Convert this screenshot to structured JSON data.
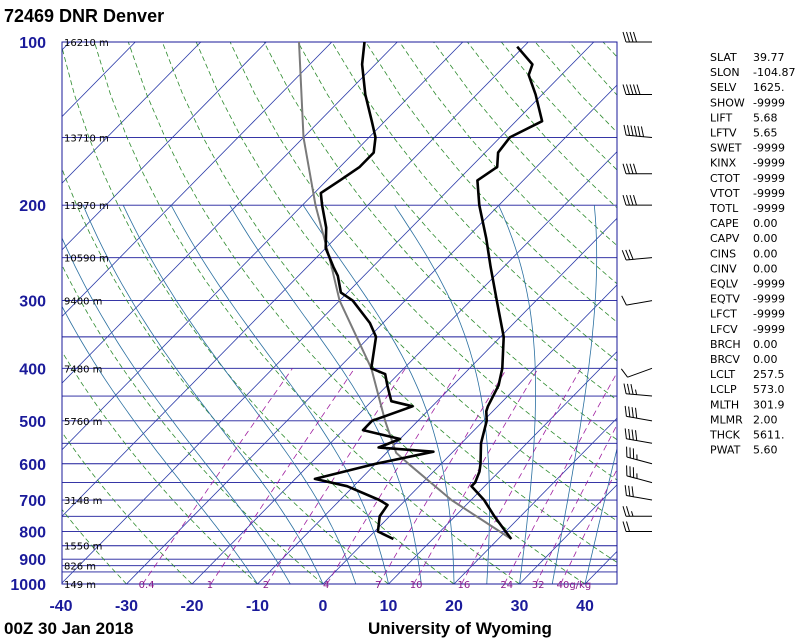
{
  "header": {
    "title": "72469 DNR Denver"
  },
  "footer": {
    "time": "00Z 30 Jan 2018",
    "source": "University of Wyoming"
  },
  "chart_data": {
    "type": "skew-t",
    "title": "72469 DNR Denver",
    "y_scale": "log-pressure",
    "pressure_ticks": [
      100,
      200,
      300,
      400,
      500,
      600,
      700,
      800,
      900,
      1000
    ],
    "temperature_ticks": [
      -40,
      -30,
      -20,
      -10,
      0,
      10,
      20,
      30,
      40
    ],
    "height_labels": [
      {
        "p": 100,
        "text": "16210 m"
      },
      {
        "p": 150,
        "text": "13710 m"
      },
      {
        "p": 200,
        "text": "11970 m"
      },
      {
        "p": 250,
        "text": "10590 m"
      },
      {
        "p": 300,
        "text": "9400 m"
      },
      {
        "p": 400,
        "text": "7480 m"
      },
      {
        "p": 500,
        "text": "5760 m"
      },
      {
        "p": 700,
        "text": "3148 m"
      },
      {
        "p": 850,
        "text": "1550 m"
      },
      {
        "p": 925,
        "text": "826 m"
      },
      {
        "p": 1000,
        "text": "149 m"
      }
    ],
    "mixing_ratio_labels": [
      "0.4",
      "1",
      "2",
      "4",
      "7",
      "10",
      "16",
      "24",
      "32",
      "40g/kg"
    ],
    "temperature_profile": [
      {
        "p": 826,
        "t": 22.0
      },
      {
        "p": 800,
        "t": 20.0
      },
      {
        "p": 750,
        "t": 16.0
      },
      {
        "p": 700,
        "t": 12.0
      },
      {
        "p": 660,
        "t": 8.0
      },
      {
        "p": 650,
        "t": 8.0
      },
      {
        "p": 620,
        "t": 7.0
      },
      {
        "p": 600,
        "t": 6.0
      },
      {
        "p": 550,
        "t": 3.0
      },
      {
        "p": 500,
        "t": 0.5
      },
      {
        "p": 480,
        "t": -1.0
      },
      {
        "p": 470,
        "t": -1.5
      },
      {
        "p": 430,
        "t": -3.0
      },
      {
        "p": 400,
        "t": -5.0
      },
      {
        "p": 350,
        "t": -9.5
      },
      {
        "p": 300,
        "t": -16.0
      },
      {
        "p": 260,
        "t": -22.0
      },
      {
        "p": 230,
        "t": -27.0
      },
      {
        "p": 200,
        "t": -33.0
      },
      {
        "p": 180,
        "t": -37.0
      },
      {
        "p": 170,
        "t": -36.0
      },
      {
        "p": 160,
        "t": -38.0
      },
      {
        "p": 150,
        "t": -38.5
      },
      {
        "p": 140,
        "t": -36.0
      },
      {
        "p": 125,
        "t": -41.0
      },
      {
        "p": 115,
        "t": -45.0
      },
      {
        "p": 110,
        "t": -46.0
      },
      {
        "p": 102,
        "t": -51.0
      }
    ],
    "dewpoint_profile": [
      {
        "p": 826,
        "t": 4.0
      },
      {
        "p": 800,
        "t": 0.5
      },
      {
        "p": 750,
        "t": -1.5
      },
      {
        "p": 715,
        "t": -2.0
      },
      {
        "p": 700,
        "t": -4.0
      },
      {
        "p": 660,
        "t": -11.0
      },
      {
        "p": 640,
        "t": -17.0
      },
      {
        "p": 600,
        "t": -10.0
      },
      {
        "p": 570,
        "t": -3.0
      },
      {
        "p": 560,
        "t": -12.0
      },
      {
        "p": 540,
        "t": -10.0
      },
      {
        "p": 520,
        "t": -17.0
      },
      {
        "p": 500,
        "t": -17.0
      },
      {
        "p": 470,
        "t": -13.0
      },
      {
        "p": 460,
        "t": -17.0
      },
      {
        "p": 430,
        "t": -20.0
      },
      {
        "p": 410,
        "t": -22.0
      },
      {
        "p": 400,
        "t": -25.0
      },
      {
        "p": 350,
        "t": -29.0
      },
      {
        "p": 330,
        "t": -32.0
      },
      {
        "p": 300,
        "t": -38.0
      },
      {
        "p": 290,
        "t": -41.0
      },
      {
        "p": 270,
        "t": -44.0
      },
      {
        "p": 260,
        "t": -46.0
      },
      {
        "p": 240,
        "t": -50.0
      },
      {
        "p": 220,
        "t": -53.0
      },
      {
        "p": 200,
        "t": -57.0
      },
      {
        "p": 190,
        "t": -59.0
      },
      {
        "p": 180,
        "t": -58.0
      },
      {
        "p": 170,
        "t": -57.0
      },
      {
        "p": 160,
        "t": -57.0
      },
      {
        "p": 150,
        "t": -59.0
      },
      {
        "p": 140,
        "t": -62.0
      },
      {
        "p": 125,
        "t": -67.0
      },
      {
        "p": 110,
        "t": -72.0
      },
      {
        "p": 100,
        "t": -75.0
      }
    ],
    "parcel_profile": [
      {
        "p": 826,
        "t": 22.0
      },
      {
        "p": 700,
        "t": 7.0
      },
      {
        "p": 600,
        "t": -5.0
      },
      {
        "p": 573,
        "t": -8.5
      },
      {
        "p": 500,
        "t": -15.0
      },
      {
        "p": 400,
        "t": -25.0
      },
      {
        "p": 300,
        "t": -40.0
      },
      {
        "p": 250,
        "t": -48.0
      },
      {
        "p": 200,
        "t": -58.0
      },
      {
        "p": 150,
        "t": -70.0
      },
      {
        "p": 100,
        "t": -85.0
      }
    ],
    "wind_barbs": [
      {
        "p": 100,
        "dir": 270,
        "kt": 40
      },
      {
        "p": 125,
        "dir": 270,
        "kt": 50
      },
      {
        "p": 150,
        "dir": 275,
        "kt": 60
      },
      {
        "p": 175,
        "dir": 270,
        "kt": 40
      },
      {
        "p": 200,
        "dir": 270,
        "kt": 40
      },
      {
        "p": 250,
        "dir": 265,
        "kt": 30
      },
      {
        "p": 300,
        "dir": 260,
        "kt": 10
      },
      {
        "p": 400,
        "dir": 250,
        "kt": 10
      },
      {
        "p": 450,
        "dir": 275,
        "kt": 35
      },
      {
        "p": 500,
        "dir": 280,
        "kt": 40
      },
      {
        "p": 550,
        "dir": 280,
        "kt": 40
      },
      {
        "p": 600,
        "dir": 285,
        "kt": 35
      },
      {
        "p": 650,
        "dir": 285,
        "kt": 35
      },
      {
        "p": 700,
        "dir": 280,
        "kt": 30
      },
      {
        "p": 750,
        "dir": 270,
        "kt": 25
      },
      {
        "p": 800,
        "dir": 270,
        "kt": 20
      }
    ]
  },
  "indices": [
    {
      "key": "SLAT",
      "val": "39.77"
    },
    {
      "key": "SLON",
      "val": "-104.87"
    },
    {
      "key": "SELV",
      "val": "1625."
    },
    {
      "key": "SHOW",
      "val": "-9999"
    },
    {
      "key": "LIFT",
      "val": "5.68"
    },
    {
      "key": "LFTV",
      "val": "5.65"
    },
    {
      "key": "SWET",
      "val": "-9999"
    },
    {
      "key": "KINX",
      "val": "-9999"
    },
    {
      "key": "CTOT",
      "val": "-9999"
    },
    {
      "key": "VTOT",
      "val": "-9999"
    },
    {
      "key": "TOTL",
      "val": "-9999"
    },
    {
      "key": "CAPE",
      "val": "0.00"
    },
    {
      "key": "CAPV",
      "val": "0.00"
    },
    {
      "key": "CINS",
      "val": "0.00"
    },
    {
      "key": "CINV",
      "val": "0.00"
    },
    {
      "key": "EQLV",
      "val": "-9999"
    },
    {
      "key": "EQTV",
      "val": "-9999"
    },
    {
      "key": "LFCT",
      "val": "-9999"
    },
    {
      "key": "LFCV",
      "val": "-9999"
    },
    {
      "key": "BRCH",
      "val": "0.00"
    },
    {
      "key": "BRCV",
      "val": "0.00"
    },
    {
      "key": "LCLT",
      "val": "257.5"
    },
    {
      "key": "LCLP",
      "val": "573.0"
    },
    {
      "key": "MLTH",
      "val": "301.9"
    },
    {
      "key": "MLMR",
      "val": "2.00"
    },
    {
      "key": "THCK",
      "val": "5611."
    },
    {
      "key": "PWAT",
      "val": "5.60"
    }
  ],
  "colors": {
    "isobar": "#1a1a9a",
    "isotherm": "#2a3aa8",
    "dry_adiabat": "#2e8b2e",
    "moist_adiabat": "#2a6fa0",
    "mixing_ratio": "#a020a0",
    "profile": "#000000",
    "parcel": "#7a7a7a"
  }
}
